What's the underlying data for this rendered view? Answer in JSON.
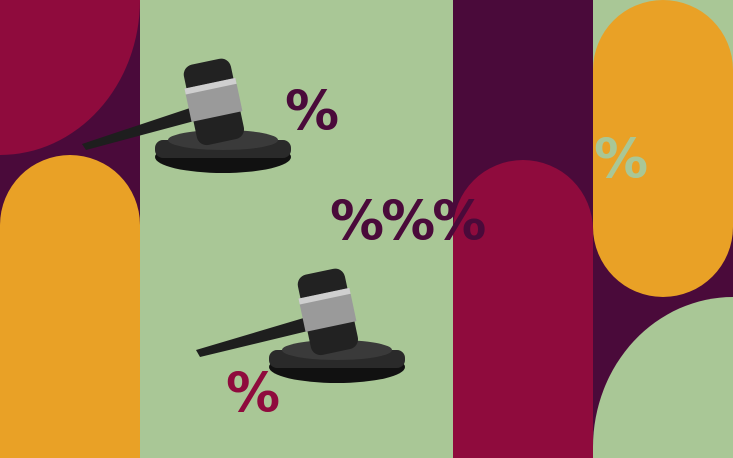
{
  "colors": {
    "background": "#a9c796",
    "purple": "#4a0a3a",
    "crimson": "#8f0b3d",
    "orange": "#e9a126",
    "green": "#a9c796",
    "gavel": "#1e1e1e"
  },
  "symbols": {
    "top": "%",
    "center": "%%%",
    "bottom": "%",
    "right": "%"
  },
  "icons": [
    "gavel-icon",
    "gavel-icon"
  ]
}
